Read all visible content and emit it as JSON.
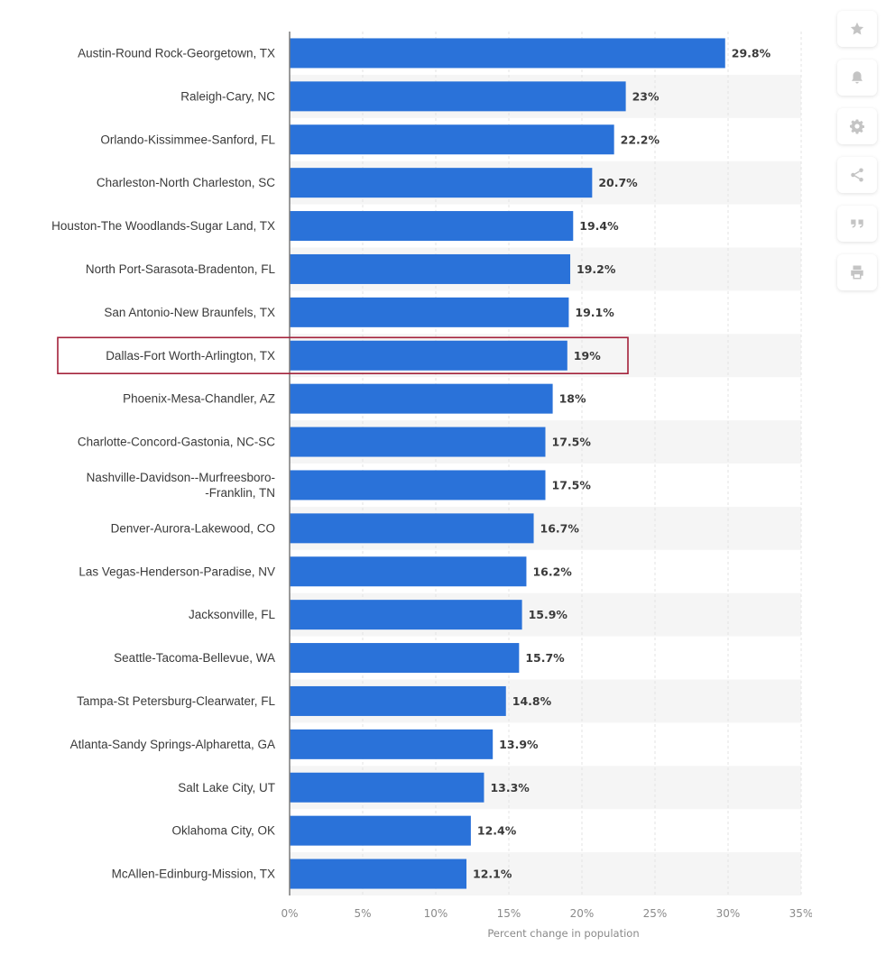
{
  "chart_data": {
    "type": "bar",
    "orientation": "horizontal",
    "categories": [
      "Austin-Round Rock-Georgetown, TX",
      "Raleigh-Cary, NC",
      "Orlando-Kissimmee-Sanford, FL",
      "Charleston-North Charleston, SC",
      "Houston-The Woodlands-Sugar Land, TX",
      "North Port-Sarasota-Bradenton, FL",
      "San Antonio-New Braunfels, TX",
      "Dallas-Fort Worth-Arlington, TX",
      "Phoenix-Mesa-Chandler, AZ",
      "Charlotte-Concord-Gastonia, NC-SC",
      "Nashville-Davidson--Murfreesboro--Franklin, TN",
      "Denver-Aurora-Lakewood, CO",
      "Las Vegas-Henderson-Paradise, NV",
      "Jacksonville, FL",
      "Seattle-Tacoma-Bellevue, WA",
      "Tampa-St Petersburg-Clearwater, FL",
      "Atlanta-Sandy Springs-Alpharetta, GA",
      "Salt Lake City, UT",
      "Oklahoma City, OK",
      "McAllen-Edinburg-Mission, TX"
    ],
    "category_label_lines": {
      "Nashville-Davidson--Murfreesboro--Franklin, TN": [
        "Nashville-Davidson--Murfreesboro-",
        "-Franklin, TN"
      ]
    },
    "values": [
      29.8,
      23,
      22.2,
      20.7,
      19.4,
      19.2,
      19.1,
      19,
      18,
      17.5,
      17.5,
      16.7,
      16.2,
      15.9,
      15.7,
      14.8,
      13.9,
      13.3,
      12.4,
      12.1
    ],
    "value_labels": [
      "29.8%",
      "23%",
      "22.2%",
      "20.7%",
      "19.4%",
      "19.2%",
      "19.1%",
      "19%",
      "18%",
      "17.5%",
      "17.5%",
      "16.7%",
      "16.2%",
      "15.9%",
      "15.7%",
      "14.8%",
      "13.9%",
      "13.3%",
      "12.4%",
      "12.1%"
    ],
    "xlim": [
      0,
      35
    ],
    "xticks": [
      0,
      5,
      10,
      15,
      20,
      25,
      30,
      35
    ],
    "xtick_labels": [
      "0%",
      "5%",
      "10%",
      "15%",
      "20%",
      "25%",
      "30%",
      "35%"
    ],
    "xlabel": "Percent change in population",
    "ylabel": "",
    "title": "",
    "highlighted_category": "Dallas-Fort Worth-Arlington, TX",
    "grid": true,
    "bar_color": "#2a72d9",
    "highlight_color": "#a3213a",
    "stripe_color": "#f5f5f5",
    "gridline_color": "#e3e3e3"
  },
  "toolbar": {
    "items": [
      {
        "name": "favorite-button",
        "icon": "star-icon"
      },
      {
        "name": "notification-button",
        "icon": "bell-icon"
      },
      {
        "name": "settings-button",
        "icon": "gear-icon"
      },
      {
        "name": "share-button",
        "icon": "share-icon"
      },
      {
        "name": "cite-button",
        "icon": "quote-icon"
      },
      {
        "name": "print-button",
        "icon": "print-icon"
      }
    ],
    "icon_color": "#c4c4c4"
  }
}
